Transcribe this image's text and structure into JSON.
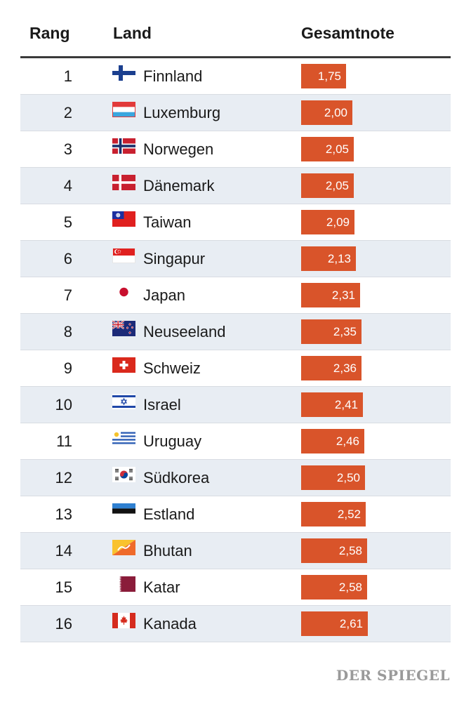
{
  "chart_data": {
    "type": "table",
    "columns": [
      "Rang",
      "Land",
      "Gesamtnote"
    ],
    "rows": [
      {
        "rank": "1",
        "country": "Finnland",
        "score": 1.75,
        "score_label": "1,75",
        "flag_icon": "finland-flag-icon"
      },
      {
        "rank": "2",
        "country": "Luxemburg",
        "score": 2.0,
        "score_label": "2,00",
        "flag_icon": "luxembourg-flag-icon"
      },
      {
        "rank": "3",
        "country": "Norwegen",
        "score": 2.05,
        "score_label": "2,05",
        "flag_icon": "norway-flag-icon"
      },
      {
        "rank": "4",
        "country": "Dänemark",
        "score": 2.05,
        "score_label": "2,05",
        "flag_icon": "denmark-flag-icon"
      },
      {
        "rank": "5",
        "country": "Taiwan",
        "score": 2.09,
        "score_label": "2,09",
        "flag_icon": "taiwan-flag-icon"
      },
      {
        "rank": "6",
        "country": "Singapur",
        "score": 2.13,
        "score_label": "2,13",
        "flag_icon": "singapore-flag-icon"
      },
      {
        "rank": "7",
        "country": "Japan",
        "score": 2.31,
        "score_label": "2,31",
        "flag_icon": "japan-flag-icon"
      },
      {
        "rank": "8",
        "country": "Neuseeland",
        "score": 2.35,
        "score_label": "2,35",
        "flag_icon": "new-zealand-flag-icon"
      },
      {
        "rank": "9",
        "country": "Schweiz",
        "score": 2.36,
        "score_label": "2,36",
        "flag_icon": "switzerland-flag-icon"
      },
      {
        "rank": "10",
        "country": "Israel",
        "score": 2.41,
        "score_label": "2,41",
        "flag_icon": "israel-flag-icon"
      },
      {
        "rank": "11",
        "country": "Uruguay",
        "score": 2.46,
        "score_label": "2,46",
        "flag_icon": "uruguay-flag-icon"
      },
      {
        "rank": "12",
        "country": "Südkorea",
        "score": 2.5,
        "score_label": "2,50",
        "flag_icon": "south-korea-flag-icon"
      },
      {
        "rank": "13",
        "country": "Estland",
        "score": 2.52,
        "score_label": "2,52",
        "flag_icon": "estonia-flag-icon"
      },
      {
        "rank": "14",
        "country": "Bhutan",
        "score": 2.58,
        "score_label": "2,58",
        "flag_icon": "bhutan-flag-icon"
      },
      {
        "rank": "15",
        "country": "Katar",
        "score": 2.58,
        "score_label": "2,58",
        "flag_icon": "qatar-flag-icon"
      },
      {
        "rank": "16",
        "country": "Kanada",
        "score": 2.61,
        "score_label": "2,61",
        "flag_icon": "canada-flag-icon"
      }
    ],
    "bar_scale": [
      0,
      7
    ],
    "colors": {
      "bar": "#d9542a",
      "alt_row": "#e8edf3",
      "rule": "#3a3a3a"
    }
  },
  "source": "DER SPIEGEL"
}
